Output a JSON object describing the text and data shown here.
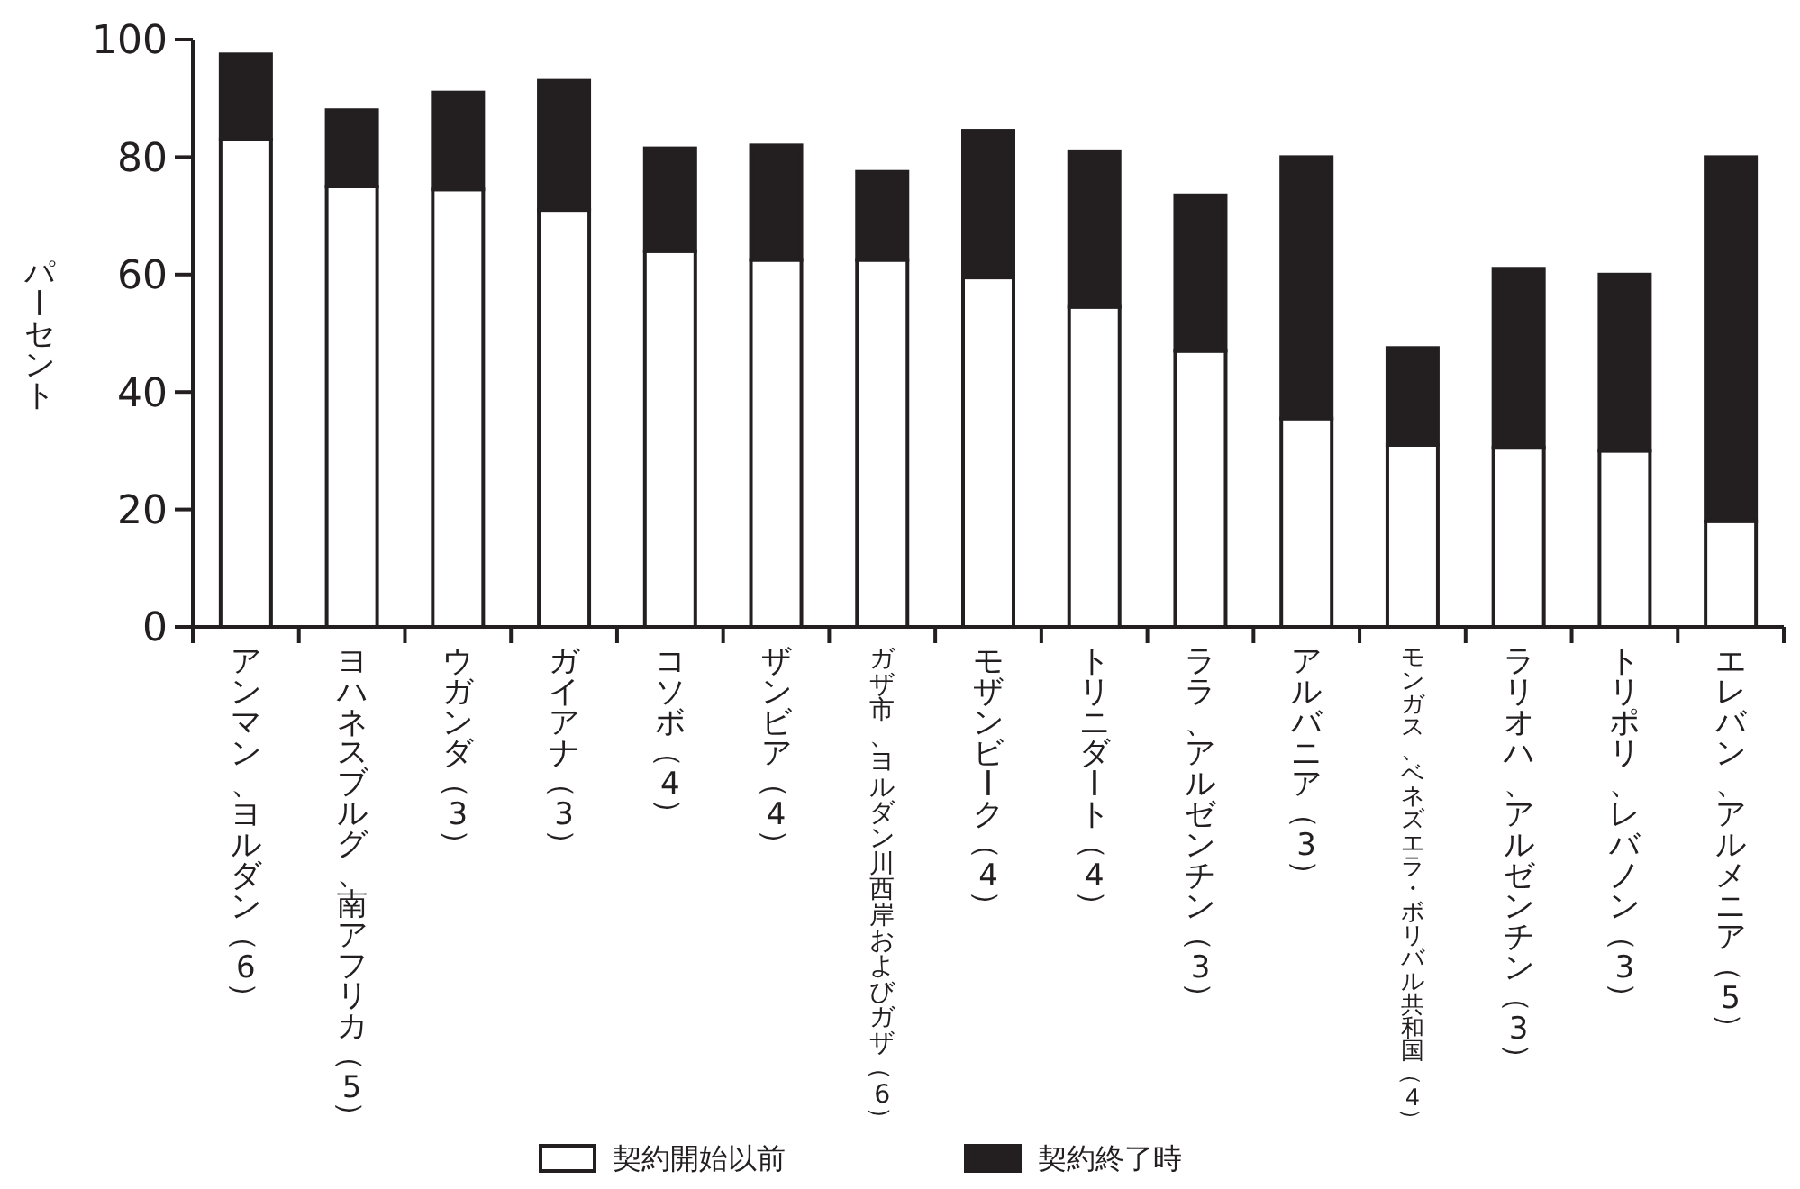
{
  "chart_data": {
    "type": "bar",
    "stacked": true,
    "ylabel": "パーセント",
    "categories": [
      "アンマン、ヨルダン（6）",
      "ヨハネスブルグ、南アフリカ（5）",
      "ウガンダ（3）",
      "ガイアナ（3）",
      "コソボ（4）",
      "ザンビア（4）",
      "ガザ市、ヨルダン川西岸およびガザ（6）",
      "モザンビーク（4）",
      "トリニダート（4）",
      "ララ、アルゼンチン（3）",
      "アルバニア（3）",
      "モンガス、ベネズエラ・ボリバル共和国（4）",
      "ラリオハ、アルゼンチン（3）",
      "トリポリ、レバノン（3）",
      "エレバン、アルメニア（5）"
    ],
    "series": [
      {
        "name": "契約開始以前",
        "color": "#ffffff",
        "values": [
          83,
          75,
          74.5,
          71,
          64,
          62.5,
          62.5,
          59.5,
          54.5,
          47,
          35.5,
          31,
          30.5,
          30,
          18
        ]
      },
      {
        "name": "契約終了時",
        "color": "#231f20",
        "values": [
          14.5,
          13,
          16.5,
          22,
          17.5,
          19.5,
          15,
          25,
          26.5,
          26.5,
          44.5,
          16.5,
          30.5,
          30,
          62
        ]
      }
    ],
    "ylim": [
      0,
      100
    ],
    "yticks": [
      0,
      20,
      40,
      60,
      80,
      100
    ],
    "grid": false,
    "legend": "bottom"
  }
}
